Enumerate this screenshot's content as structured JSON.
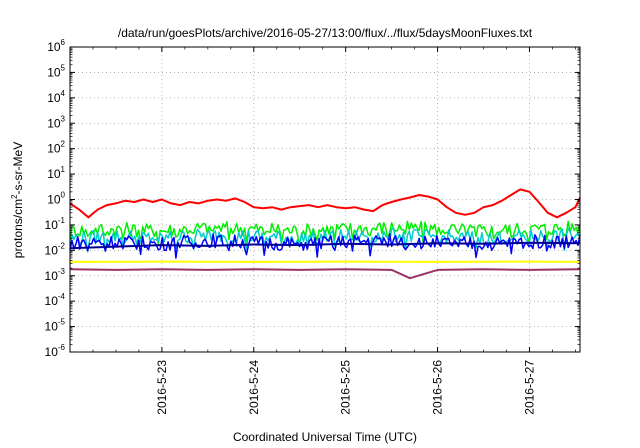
{
  "chart_data": {
    "type": "line",
    "title": "/data/run/goesPlots/archive/2016-05-27/13:00/flux/../flux/5daysMoonFluxes.txt",
    "xlabel": "Coordinated Universal Time (UTC)",
    "ylabel": {
      "prefix": "protons/cm",
      "sup": "2",
      "suffix": "-s-sr-MeV"
    },
    "yscale": "log",
    "ylim": [
      -6,
      6
    ],
    "xlim": [
      0,
      5.55
    ],
    "grid": true,
    "x_ticks": [
      {
        "x": 1,
        "label": "2016-5-23"
      },
      {
        "x": 2,
        "label": "2016-5-24"
      },
      {
        "x": 3,
        "label": "2016-5-25"
      },
      {
        "x": 4,
        "label": "2016-5-26"
      },
      {
        "x": 5,
        "label": "2016-5-27"
      }
    ],
    "y_ticks": [
      {
        "exp": 6,
        "label": "10",
        "sup": "6"
      },
      {
        "exp": 5,
        "label": "10",
        "sup": "5"
      },
      {
        "exp": 4,
        "label": "10",
        "sup": "4"
      },
      {
        "exp": 3,
        "label": "10",
        "sup": "3"
      },
      {
        "exp": 2,
        "label": "10",
        "sup": "2"
      },
      {
        "exp": 1,
        "label": "10",
        "sup": "1"
      },
      {
        "exp": 0,
        "label": "10",
        "sup": "0"
      },
      {
        "exp": -1,
        "label": "10",
        "sup": "-1"
      },
      {
        "exp": -2,
        "label": "10",
        "sup": "-2"
      },
      {
        "exp": -3,
        "label": "10",
        "sup": "-3"
      },
      {
        "exp": -4,
        "label": "10",
        "sup": "-4"
      },
      {
        "exp": -5,
        "label": "10",
        "sup": "-5"
      },
      {
        "exp": -6,
        "label": "10",
        "sup": "-6"
      }
    ],
    "series": [
      {
        "color": "#ff0000",
        "width": 2,
        "x": [
          0,
          0.1,
          0.2,
          0.3,
          0.4,
          0.5,
          0.6,
          0.7,
          0.8,
          0.9,
          1.0,
          1.1,
          1.2,
          1.3,
          1.4,
          1.5,
          1.6,
          1.7,
          1.8,
          1.9,
          2.0,
          2.1,
          2.2,
          2.3,
          2.4,
          2.5,
          2.6,
          2.7,
          2.8,
          2.9,
          3.0,
          3.1,
          3.2,
          3.3,
          3.4,
          3.5,
          3.6,
          3.7,
          3.8,
          3.9,
          4.0,
          4.1,
          4.2,
          4.3,
          4.4,
          4.5,
          4.6,
          4.7,
          4.8,
          4.9,
          5.0,
          5.1,
          5.2,
          5.3,
          5.4,
          5.5,
          5.55
        ],
        "y": [
          0.7,
          0.4,
          0.2,
          0.4,
          0.6,
          0.7,
          0.9,
          0.8,
          1.0,
          0.8,
          1.0,
          0.7,
          0.6,
          0.8,
          0.7,
          0.9,
          1.0,
          0.9,
          1.1,
          0.8,
          0.5,
          0.45,
          0.5,
          0.4,
          0.5,
          0.55,
          0.6,
          0.5,
          0.6,
          0.5,
          0.45,
          0.5,
          0.4,
          0.35,
          0.6,
          0.8,
          1.0,
          1.2,
          1.5,
          1.3,
          1.0,
          0.5,
          0.3,
          0.25,
          0.3,
          0.5,
          0.6,
          0.9,
          1.5,
          2.5,
          2.0,
          0.8,
          0.3,
          0.2,
          0.3,
          0.5,
          1.2
        ]
      },
      {
        "color": "#00ee00",
        "width": 1.5,
        "jagged": true,
        "x": [
          0,
          0.5,
          1.0,
          1.5,
          2.0,
          2.5,
          3.0,
          3.5,
          4.0,
          4.5,
          5.0,
          5.55
        ],
        "y": [
          0.06,
          0.07,
          0.06,
          0.08,
          0.07,
          0.06,
          0.07,
          0.08,
          0.07,
          0.06,
          0.07,
          0.08
        ]
      },
      {
        "color": "#00cccc",
        "width": 1.5,
        "jagged": true,
        "x": [
          0,
          0.5,
          1.0,
          1.5,
          2.0,
          2.5,
          3.0,
          3.5,
          4.0,
          4.5,
          5.0,
          5.55
        ],
        "y": [
          0.03,
          0.035,
          0.03,
          0.04,
          0.035,
          0.03,
          0.035,
          0.04,
          0.035,
          0.03,
          0.035,
          0.04
        ]
      },
      {
        "color": "#0000ff",
        "width": 1.5,
        "jagged": true,
        "x": [
          0,
          0.5,
          1.0,
          1.5,
          2.0,
          2.5,
          3.0,
          3.5,
          4.0,
          4.5,
          5.0,
          5.55
        ],
        "y": [
          0.02,
          0.022,
          0.018,
          0.025,
          0.02,
          0.018,
          0.022,
          0.025,
          0.02,
          0.018,
          0.022,
          0.024
        ]
      },
      {
        "color": "#000099",
        "width": 2,
        "x": [
          0,
          0.5,
          1.0,
          1.5,
          2.0,
          2.5,
          3.0,
          3.5,
          4.0,
          4.5,
          5.0,
          5.55
        ],
        "y": [
          0.012,
          0.014,
          0.016,
          0.015,
          0.017,
          0.016,
          0.018,
          0.017,
          0.019,
          0.018,
          0.02,
          0.019
        ]
      },
      {
        "color": "#ffff00",
        "width": 2,
        "x": [
          0,
          1.0,
          2.0,
          3.0,
          4.0,
          5.0,
          5.55
        ],
        "y": [
          0.0035,
          0.0036,
          0.0035,
          0.0036,
          0.0035,
          0.0036,
          0.0035
        ]
      },
      {
        "color": "#993366",
        "width": 2,
        "x": [
          0,
          0.5,
          1.0,
          1.5,
          2.0,
          2.5,
          3.0,
          3.5,
          3.7,
          4.0,
          4.5,
          5.0,
          5.55
        ],
        "y": [
          0.0018,
          0.0017,
          0.0018,
          0.0017,
          0.0018,
          0.0017,
          0.0018,
          0.0017,
          0.0008,
          0.0017,
          0.0018,
          0.0017,
          0.0018
        ]
      }
    ]
  }
}
